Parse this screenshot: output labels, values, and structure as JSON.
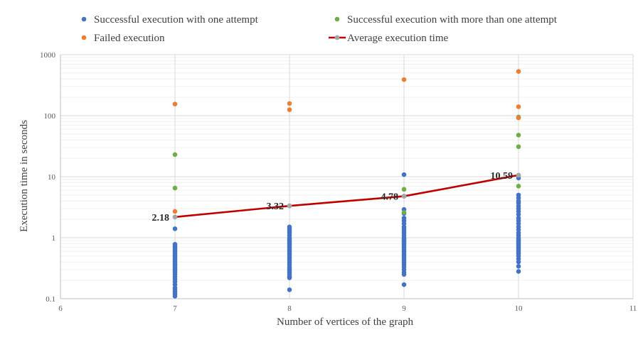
{
  "chart_data": {
    "type": "scatter",
    "title": "",
    "xlabel": "Number of vertices of the graph",
    "ylabel": "Execution time in seconds",
    "xlim": [
      6,
      11
    ],
    "ylim": [
      0.1,
      1000
    ],
    "yscale": "log",
    "x_ticks": [
      "6",
      "7",
      "8",
      "9",
      "10",
      "11"
    ],
    "y_ticks": [
      "0.1",
      "1",
      "10",
      "100",
      "1000"
    ],
    "grid": true,
    "legend_position": "top",
    "colors": {
      "one_attempt": "#4472C4",
      "more_attempts": "#70AD47",
      "failed": "#ED7D31",
      "average": "#C00000",
      "average_marker": "#A5A5A5"
    },
    "series": [
      {
        "name": "Successful execution with one attempt",
        "kind": "points",
        "points": [
          [
            7,
            1.4
          ],
          [
            7,
            0.78
          ],
          [
            7,
            0.72
          ],
          [
            7,
            0.68
          ],
          [
            7,
            0.64
          ],
          [
            7,
            0.6
          ],
          [
            7,
            0.56
          ],
          [
            7,
            0.52
          ],
          [
            7,
            0.49
          ],
          [
            7,
            0.46
          ],
          [
            7,
            0.43
          ],
          [
            7,
            0.4
          ],
          [
            7,
            0.37
          ],
          [
            7,
            0.35
          ],
          [
            7,
            0.33
          ],
          [
            7,
            0.31
          ],
          [
            7,
            0.29
          ],
          [
            7,
            0.27
          ],
          [
            7,
            0.25
          ],
          [
            7,
            0.23
          ],
          [
            7,
            0.21
          ],
          [
            7,
            0.19
          ],
          [
            7,
            0.17
          ],
          [
            7,
            0.15
          ],
          [
            7,
            0.14
          ],
          [
            7,
            0.13
          ],
          [
            7,
            0.12
          ],
          [
            7,
            0.11
          ],
          [
            8,
            1.5
          ],
          [
            8,
            1.4
          ],
          [
            8,
            1.3
          ],
          [
            8,
            1.2
          ],
          [
            8,
            1.1
          ],
          [
            8,
            1.0
          ],
          [
            8,
            0.95
          ],
          [
            8,
            0.9
          ],
          [
            8,
            0.85
          ],
          [
            8,
            0.8
          ],
          [
            8,
            0.75
          ],
          [
            8,
            0.7
          ],
          [
            8,
            0.65
          ],
          [
            8,
            0.6
          ],
          [
            8,
            0.56
          ],
          [
            8,
            0.52
          ],
          [
            8,
            0.48
          ],
          [
            8,
            0.45
          ],
          [
            8,
            0.42
          ],
          [
            8,
            0.39
          ],
          [
            8,
            0.36
          ],
          [
            8,
            0.33
          ],
          [
            8,
            0.31
          ],
          [
            8,
            0.29
          ],
          [
            8,
            0.27
          ],
          [
            8,
            0.25
          ],
          [
            8,
            0.23
          ],
          [
            8,
            0.22
          ],
          [
            8,
            0.14
          ],
          [
            9,
            10.8
          ],
          [
            9,
            2.9
          ],
          [
            9,
            2.5
          ],
          [
            9,
            2.1
          ],
          [
            9,
            1.9
          ],
          [
            9,
            1.7
          ],
          [
            9,
            1.5
          ],
          [
            9,
            1.4
          ],
          [
            9,
            1.3
          ],
          [
            9,
            1.2
          ],
          [
            9,
            1.1
          ],
          [
            9,
            1.0
          ],
          [
            9,
            0.95
          ],
          [
            9,
            0.9
          ],
          [
            9,
            0.85
          ],
          [
            9,
            0.8
          ],
          [
            9,
            0.75
          ],
          [
            9,
            0.7
          ],
          [
            9,
            0.65
          ],
          [
            9,
            0.6
          ],
          [
            9,
            0.56
          ],
          [
            9,
            0.52
          ],
          [
            9,
            0.48
          ],
          [
            9,
            0.45
          ],
          [
            9,
            0.42
          ],
          [
            9,
            0.39
          ],
          [
            9,
            0.36
          ],
          [
            9,
            0.33
          ],
          [
            9,
            0.3
          ],
          [
            9,
            0.27
          ],
          [
            9,
            0.25
          ],
          [
            9,
            0.17
          ],
          [
            10,
            9.5
          ],
          [
            10,
            5.0
          ],
          [
            10,
            4.5
          ],
          [
            10,
            4.0
          ],
          [
            10,
            3.7
          ],
          [
            10,
            3.3
          ],
          [
            10,
            3.0
          ],
          [
            10,
            2.7
          ],
          [
            10,
            2.4
          ],
          [
            10,
            2.1
          ],
          [
            10,
            1.9
          ],
          [
            10,
            1.7
          ],
          [
            10,
            1.5
          ],
          [
            10,
            1.35
          ],
          [
            10,
            1.2
          ],
          [
            10,
            1.1
          ],
          [
            10,
            1.0
          ],
          [
            10,
            0.95
          ],
          [
            10,
            0.9
          ],
          [
            10,
            0.85
          ],
          [
            10,
            0.8
          ],
          [
            10,
            0.75
          ],
          [
            10,
            0.7
          ],
          [
            10,
            0.66
          ],
          [
            10,
            0.62
          ],
          [
            10,
            0.58
          ],
          [
            10,
            0.55
          ],
          [
            10,
            0.5
          ],
          [
            10,
            0.45
          ],
          [
            10,
            0.4
          ],
          [
            10,
            0.34
          ],
          [
            10,
            0.28
          ]
        ]
      },
      {
        "name": "Successful execution with more than one attempt",
        "kind": "points",
        "points": [
          [
            7,
            23
          ],
          [
            7,
            6.5
          ],
          [
            9,
            6.2
          ],
          [
            9,
            2.6
          ],
          [
            10,
            95
          ],
          [
            10,
            48
          ],
          [
            10,
            31
          ],
          [
            10,
            7
          ]
        ]
      },
      {
        "name": "Failed execution",
        "kind": "points",
        "points": [
          [
            7,
            155
          ],
          [
            7,
            2.7
          ],
          [
            8,
            158
          ],
          [
            8,
            125
          ],
          [
            9,
            390
          ],
          [
            10,
            530
          ],
          [
            10,
            140
          ],
          [
            10,
            92
          ]
        ]
      },
      {
        "name": "Average execution time",
        "kind": "line",
        "x": [
          7,
          8,
          9,
          10
        ],
        "y": [
          2.18,
          3.32,
          4.78,
          10.59
        ],
        "labels": [
          "2.18",
          "3.32",
          "4.78",
          "10.59"
        ]
      }
    ]
  }
}
